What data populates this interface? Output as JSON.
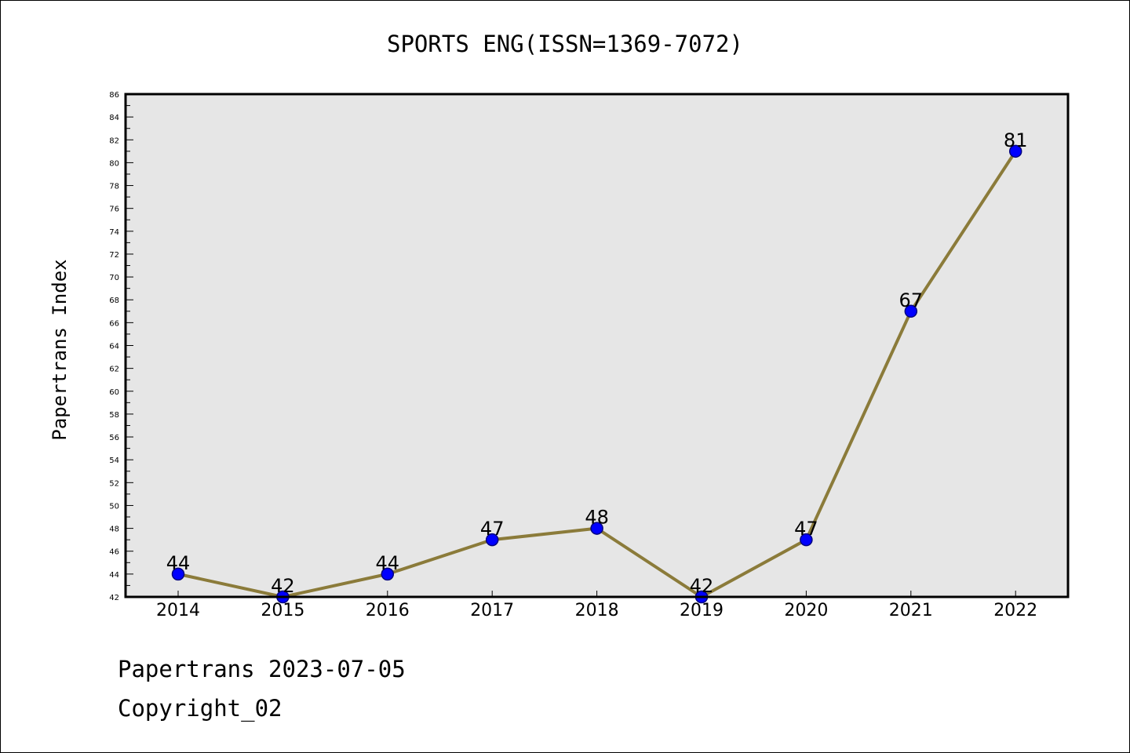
{
  "chart_data": {
    "type": "line",
    "title": "SPORTS ENG(ISSN=1369-7072)",
    "ylabel": "Papertrans Index",
    "xlabel": "",
    "categories": [
      "2014",
      "2015",
      "2016",
      "2017",
      "2018",
      "2019",
      "2020",
      "2021",
      "2022"
    ],
    "values": [
      44,
      42,
      44,
      47,
      48,
      42,
      47,
      67,
      81
    ],
    "data_labels": [
      "44",
      "42",
      "44",
      "47",
      "48",
      "42",
      "47",
      "67",
      "81"
    ],
    "ylim": [
      42,
      86
    ],
    "y_ticks": [
      42,
      44,
      46,
      48,
      50,
      52,
      54,
      56,
      58,
      60,
      62,
      64,
      66,
      68,
      70,
      72,
      74,
      76,
      78,
      80,
      82,
      84,
      86
    ],
    "grid": false,
    "legend": "none",
    "colors": {
      "line": "#8B7B3A",
      "marker_fill": "#0000FF",
      "marker_edge": "#000080",
      "plot_background": "#E6E6E6",
      "axis": "#000000"
    }
  },
  "footer": {
    "line1": "Papertrans 2023-07-05",
    "line2": "Copyright_02"
  }
}
